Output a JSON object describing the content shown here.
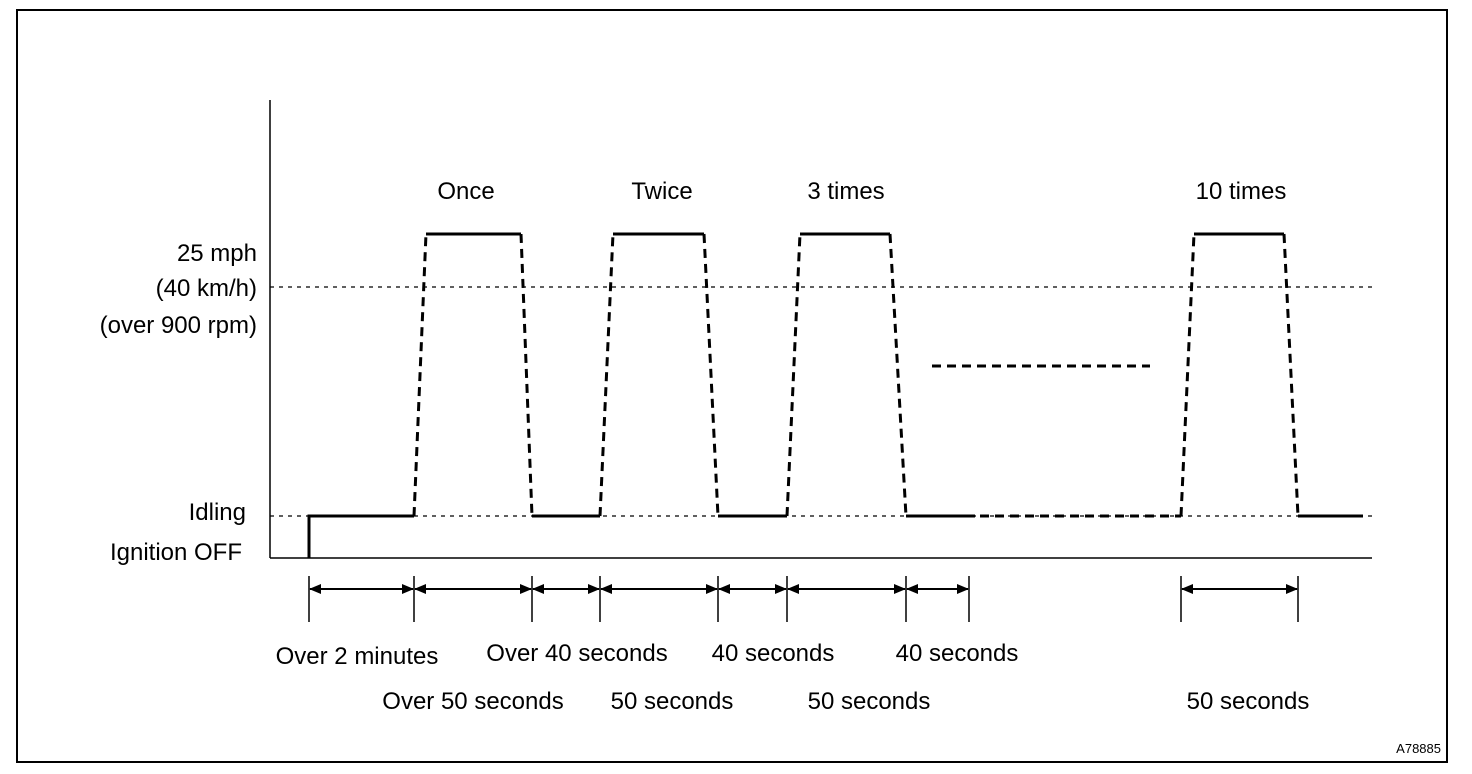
{
  "title": "",
  "y_levels": {
    "speed_line1": "25 mph",
    "speed_line2": "(40 km/h)",
    "speed_line3": "(over 900 rpm)",
    "idling": "Idling",
    "ignition_off": "Ignition OFF"
  },
  "cycles": {
    "once": "Once",
    "twice": "Twice",
    "three": "3 times",
    "ten": "10 times"
  },
  "durations": {
    "over_2_minutes": "Over 2 minutes",
    "over_50_seconds": "Over 50 seconds",
    "over_40_seconds": "Over 40 seconds",
    "s50_a": "50 seconds",
    "s40_a": "40 seconds",
    "s50_b": "50 seconds",
    "s40_b": "40 seconds",
    "s50_c": "50 seconds"
  },
  "figure_code": "A78885",
  "colors": {
    "ink": "#000000",
    "background": "#ffffff"
  }
}
